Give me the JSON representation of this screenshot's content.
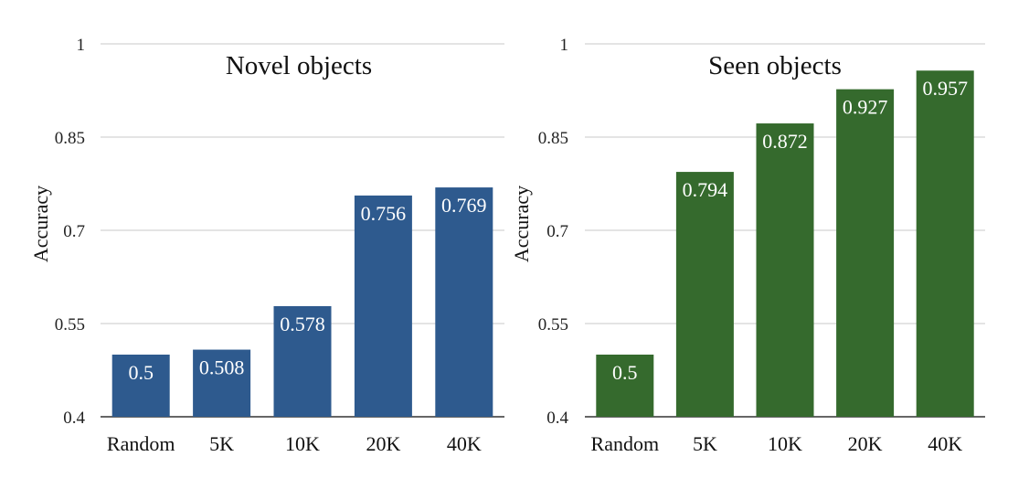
{
  "chart_data": [
    {
      "type": "bar",
      "title": "Novel objects",
      "xlabel": "",
      "ylabel": "Accuracy",
      "categories": [
        "Random",
        "5K",
        "10K",
        "20K",
        "40K"
      ],
      "values": [
        0.5,
        0.508,
        0.578,
        0.756,
        0.769
      ],
      "data_labels": [
        "0.5",
        "0.508",
        "0.578",
        "0.756",
        "0.769"
      ],
      "yticks": [
        0.4,
        0.55,
        0.7,
        0.85,
        1
      ],
      "ytick_labels": [
        "0.4",
        "0.55",
        "0.7",
        "0.85",
        "1"
      ],
      "ylim": [
        0.4,
        1
      ],
      "grid": true,
      "legend": "none",
      "color": "#2e5a8e"
    },
    {
      "type": "bar",
      "title": "Seen objects",
      "xlabel": "",
      "ylabel": "Accuracy",
      "categories": [
        "Random",
        "5K",
        "10K",
        "20K",
        "40K"
      ],
      "values": [
        0.5,
        0.794,
        0.872,
        0.927,
        0.957
      ],
      "data_labels": [
        "0.5",
        "0.794",
        "0.872",
        "0.927",
        "0.957"
      ],
      "yticks": [
        0.4,
        0.55,
        0.7,
        0.85,
        1
      ],
      "ytick_labels": [
        "0.4",
        "0.55",
        "0.7",
        "0.85",
        "1"
      ],
      "ylim": [
        0.4,
        1
      ],
      "grid": true,
      "legend": "none",
      "color": "#356a2d"
    }
  ]
}
